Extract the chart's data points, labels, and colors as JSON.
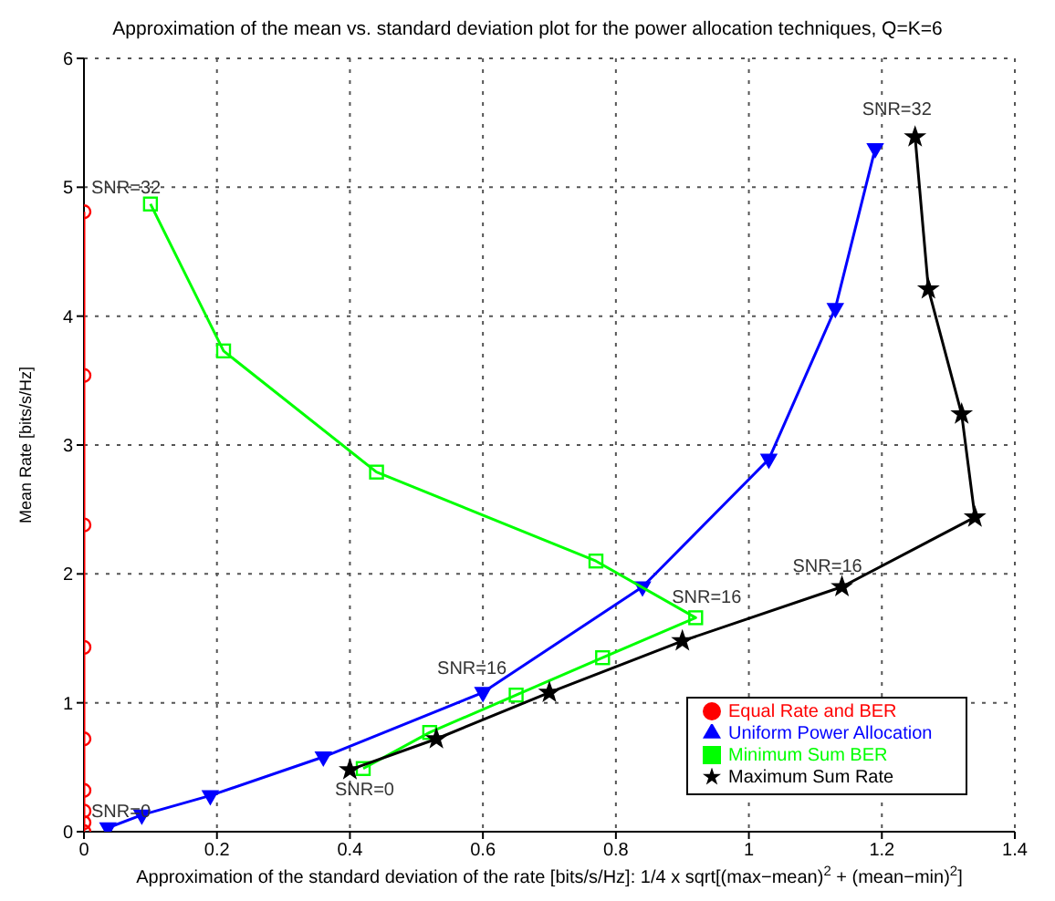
{
  "chart_data": {
    "type": "line",
    "title": "Approximation of the mean vs. standard deviation plot for the power allocation techniques, Q=K=6",
    "xlabel": "Approximation of the standard deviation of the rate [bits/s/Hz]: 1/4 x sqrt[(max−mean)$^{2}$ + (mean−min)$^{2}$]",
    "ylabel": "Mean Rate [bits/s/Hz]",
    "xlim": [
      0,
      1.4
    ],
    "xticks": [
      0,
      0.2,
      0.4,
      0.6,
      0.8,
      1,
      1.2,
      1.4
    ],
    "ylim": [
      0,
      6
    ],
    "yticks": [
      0,
      1,
      2,
      3,
      4,
      5,
      6
    ],
    "grid": true,
    "legend": "bottom right",
    "line_style": "solid",
    "series": [
      {
        "name": "Equal Rate and BER",
        "color": "#ff0000",
        "marker": "circle",
        "x": [
          0,
          0,
          0,
          0,
          0,
          0,
          0,
          0,
          0
        ],
        "values": [
          0,
          0.07,
          0.16,
          0.32,
          0.72,
          1.43,
          2.38,
          3.54,
          4.81
        ]
      },
      {
        "name": "Uniform Power Allocation",
        "color": "#0000ff",
        "marker": "triangle",
        "x": [
          0.036,
          0.087,
          0.19,
          0.36,
          0.6,
          0.84,
          1.03,
          1.13,
          1.19
        ],
        "values": [
          0.03,
          0.13,
          0.28,
          0.58,
          1.08,
          1.9,
          2.89,
          4.06,
          5.3
        ]
      },
      {
        "name": "Minimum Sum BER",
        "color": "#00ff00",
        "marker": "square",
        "x": [
          0.42,
          0.52,
          0.65,
          0.78,
          0.92,
          0.77,
          0.44,
          0.21,
          0.1
        ],
        "values": [
          0.49,
          0.77,
          1.06,
          1.35,
          1.66,
          2.1,
          2.79,
          3.73,
          4.87
        ]
      },
      {
        "name": "Maximum Sum Rate",
        "color": "#000000",
        "marker": "star",
        "x": [
          0.4,
          0.53,
          0.7,
          0.9,
          1.14,
          1.34,
          1.32,
          1.27,
          1.25
        ],
        "values": [
          0.48,
          0.72,
          1.08,
          1.48,
          1.9,
          2.44,
          3.24,
          4.21,
          5.39
        ]
      }
    ],
    "annotations": [
      {
        "text": "SNR=32",
        "x": 0,
        "y": 4.81
      },
      {
        "text": "SNR=0",
        "x": 0,
        "y": 0
      },
      {
        "text": "SNR=16",
        "x": 0.6,
        "y": 1.08
      },
      {
        "text": "SNR=16",
        "x": 0.92,
        "y": 1.66
      },
      {
        "text": "SNR=16",
        "x": 1.14,
        "y": 1.9
      },
      {
        "text": "SNR=32",
        "x": 1.25,
        "y": 5.39
      },
      {
        "text": "SNR=0",
        "x": 0.4,
        "y": 0.48
      }
    ]
  }
}
